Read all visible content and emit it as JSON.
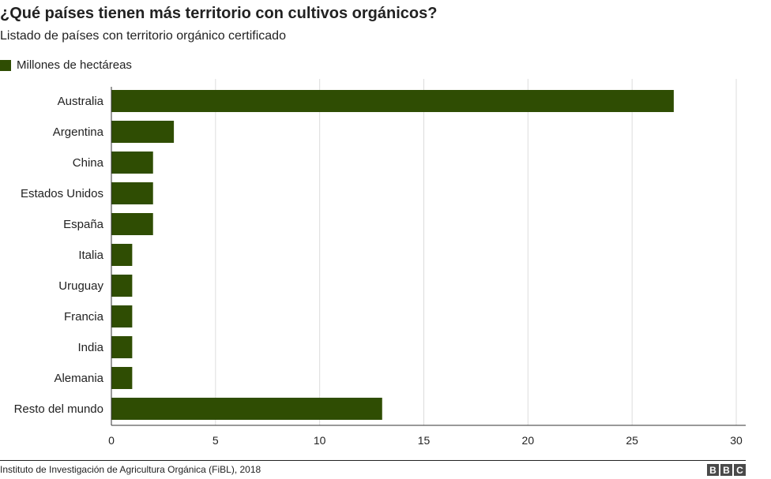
{
  "header": {
    "title": "¿Qué países tienen más territorio con cultivos orgánicos?",
    "subtitle": "Listado de países con territorio orgánico certificado"
  },
  "legend": {
    "label": "Millones de hectáreas"
  },
  "chart_data": {
    "type": "bar",
    "orientation": "horizontal",
    "categories": [
      "Australia",
      "Argentina",
      "China",
      "Estados Unidos",
      "España",
      "Italia",
      "Uruguay",
      "Francia",
      "India",
      "Alemania",
      "Resto del mundo"
    ],
    "series": [
      {
        "name": "Millones de hectáreas",
        "values": [
          27,
          3,
          2,
          2,
          2,
          1,
          1,
          1,
          1,
          1,
          13
        ],
        "color": "#2f4d03"
      }
    ],
    "xlim": [
      0,
      30
    ],
    "xticks": [
      0,
      5,
      10,
      15,
      20,
      25,
      30
    ],
    "grid": true,
    "legend_position": "top-left"
  },
  "footer": {
    "source": "Instituto de Investigación de Agricultura Orgánica (FiBL), 2018",
    "logo_letters": [
      "B",
      "B",
      "C"
    ]
  },
  "colors": {
    "bar": "#2f4d03",
    "grid": "#dcdcdc",
    "axis": "#333333",
    "text": "#222222",
    "logo": "#4a4a4a"
  }
}
